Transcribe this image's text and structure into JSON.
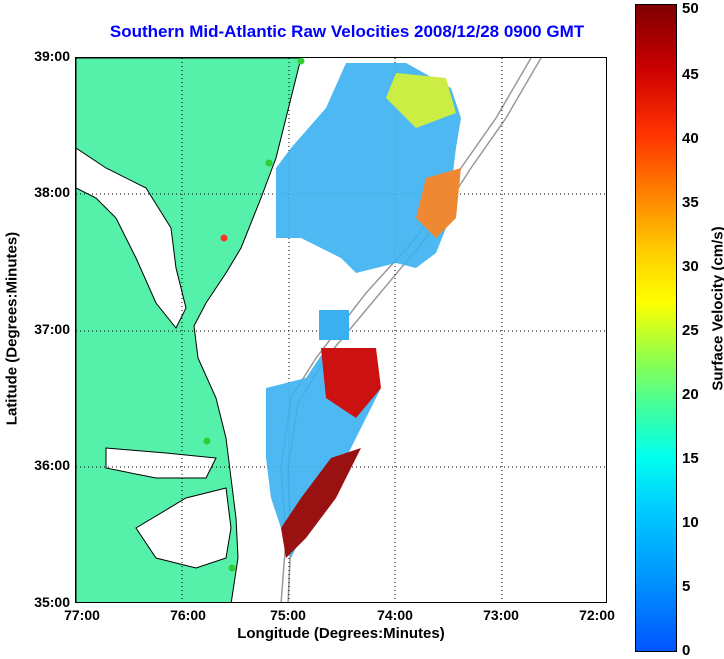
{
  "title": "Southern Mid-Atlantic Raw Velocities 2008/12/28 0900 GMT",
  "xlabel": "Longitude (Degrees:Minutes)",
  "ylabel": "Latitude (Degrees:Minutes)",
  "colorbar_label": "Surface Velocity (cm/s)",
  "xticks": [
    "77:00",
    "76:00",
    "75:00",
    "74:00",
    "73:00",
    "72:00"
  ],
  "yticks": [
    "39:00",
    "38:00",
    "37:00",
    "36:00",
    "35:00"
  ],
  "cticks": [
    "0",
    "5",
    "10",
    "15",
    "20",
    "25",
    "30",
    "35",
    "40",
    "45",
    "50"
  ],
  "colors": {
    "land": "#55f0aa",
    "title": "#0000ff",
    "current_blue": "#3ab0f0",
    "station": "#33cc33"
  }
}
